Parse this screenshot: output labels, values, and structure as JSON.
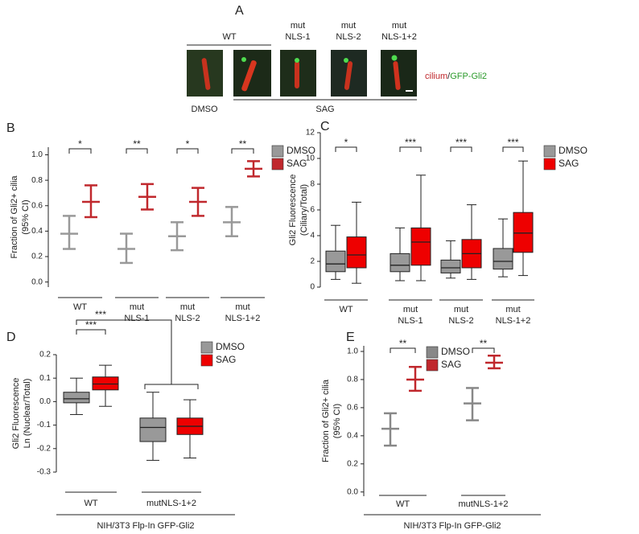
{
  "panel_labels": [
    "A",
    "B",
    "C",
    "D",
    "E"
  ],
  "panel_a": {
    "wt": "WT",
    "mutants": [
      [
        "mut",
        "NLS-1"
      ],
      [
        "mut",
        "NLS-2"
      ],
      [
        "mut",
        "NLS-1+2"
      ]
    ],
    "dmso": "DMSO",
    "sag": "SAG",
    "legend": [
      "cilium",
      "/",
      "GFP-Gli2"
    ]
  },
  "chart_data": [
    {
      "type": "errorbar",
      "y_label": [
        "Fraction of Gli2+ cilia",
        "(95% CI)"
      ],
      "categories": [
        [
          "WT"
        ],
        [
          "mut",
          "NLS-1"
        ],
        [
          "mut",
          "NLS-2"
        ],
        [
          "mut",
          "NLS-1+2"
        ]
      ],
      "series": [
        {
          "name": "DMSO",
          "color": "#999999",
          "values": [
            0.38,
            0.26,
            0.36,
            0.47
          ],
          "low": [
            0.26,
            0.15,
            0.25,
            0.36
          ],
          "high": [
            0.52,
            0.38,
            0.47,
            0.59
          ]
        },
        {
          "name": "SAG",
          "color": "#c0282d",
          "values": [
            0.63,
            0.67,
            0.63,
            0.89
          ],
          "low": [
            0.51,
            0.57,
            0.52,
            0.83
          ],
          "high": [
            0.76,
            0.77,
            0.74,
            0.95
          ]
        }
      ],
      "significance": [
        "*",
        "**",
        "*",
        "**"
      ],
      "ylim": [
        -0.04,
        1.06
      ],
      "yticks": [
        {
          "value": 0,
          "label": "0.0"
        },
        0.2,
        0.4,
        0.6,
        0.8,
        {
          "value": 1,
          "label": "1.0"
        }
      ]
    },
    {
      "type": "box",
      "y_label": [
        "Gli2 Fluorescence",
        "(Ciliary/Total)"
      ],
      "categories": [
        [
          "WT"
        ],
        [
          "mut",
          "NLS-1"
        ],
        [
          "mut",
          "NLS-2"
        ],
        [
          "mut",
          "NLS-1+2"
        ]
      ],
      "series": [
        {
          "name": "DMSO",
          "color": "#999999",
          "whisker_low": [
            0.6,
            0.5,
            0.7,
            0.8
          ],
          "q1": [
            1.2,
            1.2,
            1.1,
            1.4
          ],
          "median": [
            1.8,
            1.7,
            1.5,
            2.0
          ],
          "q3": [
            2.8,
            2.6,
            2.1,
            3.0
          ],
          "whisker_high": [
            4.8,
            4.6,
            3.6,
            5.3
          ]
        },
        {
          "name": "SAG",
          "color": "#ee0000",
          "whisker_low": [
            0.3,
            0.5,
            0.6,
            0.9
          ],
          "q1": [
            1.5,
            1.7,
            1.5,
            2.7
          ],
          "median": [
            2.5,
            3.5,
            2.6,
            4.2
          ],
          "q3": [
            3.9,
            4.6,
            3.7,
            5.8
          ],
          "whisker_high": [
            6.6,
            8.7,
            6.4,
            9.8
          ]
        }
      ],
      "significance": [
        "*",
        "***",
        "***",
        "***"
      ],
      "ylim": [
        0,
        12
      ],
      "yticks": [
        0,
        2,
        4,
        6,
        8,
        10,
        12
      ]
    },
    {
      "type": "box",
      "y_label": [
        "Gli2 Fluorescence",
        "Ln (Nuclear/Total)"
      ],
      "categories": [
        [
          "WT"
        ],
        [
          "mutNLS-1+2"
        ]
      ],
      "series": [
        {
          "name": "DMSO",
          "color": "#999999",
          "whisker_low": [
            -0.055,
            -0.25
          ],
          "q1": [
            -0.005,
            -0.17
          ],
          "median": [
            0.012,
            -0.11
          ],
          "q3": [
            0.04,
            -0.07
          ],
          "whisker_high": [
            0.1,
            0.04
          ]
        },
        {
          "name": "SAG",
          "color": "#ee0000",
          "whisker_low": [
            -0.02,
            -0.24
          ],
          "q1": [
            0.05,
            -0.14
          ],
          "median": [
            0.075,
            -0.105
          ],
          "q3": [
            0.105,
            -0.07
          ],
          "whisker_high": [
            0.155,
            0.008
          ]
        }
      ],
      "significance": [
        "***",
        null
      ],
      "group_significance": "***",
      "footer": "NIH/3T3 Flp-In GFP-Gli2",
      "ylim": [
        -0.3,
        0.2
      ],
      "yticks": [
        -0.3,
        -0.2,
        -0.1,
        {
          "value": 0,
          "label": "0.0"
        },
        0.1,
        0.2
      ]
    },
    {
      "type": "errorbar",
      "y_label": [
        "Fraction of Gli2+ cilia",
        "(95% CI)"
      ],
      "categories": [
        [
          "WT"
        ],
        [
          "mutNLS-1+2"
        ]
      ],
      "series": [
        {
          "name": "DMSO",
          "color": "#888888",
          "values": [
            0.45,
            0.63
          ],
          "low": [
            0.33,
            0.51
          ],
          "high": [
            0.56,
            0.74
          ]
        },
        {
          "name": "SAG",
          "color": "#c0282d",
          "values": [
            0.8,
            0.92
          ],
          "low": [
            0.72,
            0.88
          ],
          "high": [
            0.89,
            0.97
          ]
        }
      ],
      "significance": [
        "**",
        "**"
      ],
      "footer": "NIH/3T3 Flp-In GFP-Gli2",
      "ylim": [
        -0.03,
        1.04
      ],
      "yticks": [
        {
          "value": 0,
          "label": "0.0"
        },
        0.2,
        0.4,
        0.6,
        0.8,
        {
          "value": 1,
          "label": "1.0"
        }
      ]
    }
  ]
}
